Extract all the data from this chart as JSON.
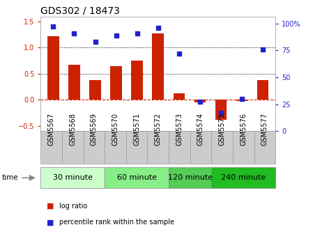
{
  "title": "GDS302 / 18473",
  "samples": [
    "GSM5567",
    "GSM5568",
    "GSM5569",
    "GSM5570",
    "GSM5571",
    "GSM5572",
    "GSM5573",
    "GSM5574",
    "GSM5575",
    "GSM5576",
    "GSM5577"
  ],
  "log_ratio": [
    1.22,
    0.67,
    0.38,
    0.65,
    0.75,
    1.27,
    0.12,
    -0.05,
    -0.38,
    -0.02,
    0.38
  ],
  "percentile_rank": [
    97,
    91,
    83,
    89,
    91,
    96,
    72,
    27,
    17,
    30,
    76
  ],
  "bar_color": "#cc2200",
  "dot_color": "#2222cc",
  "ylim_left": [
    -0.6,
    1.6
  ],
  "ylim_right": [
    0,
    106.67
  ],
  "yticks_left": [
    -0.5,
    0.0,
    0.5,
    1.0,
    1.5
  ],
  "yticks_right": [
    0,
    25,
    50,
    75,
    100
  ],
  "ytick_labels_right": [
    "0",
    "25",
    "50",
    "75",
    "100%"
  ],
  "dotted_lines": [
    0.5,
    1.0
  ],
  "zero_line_color": "#cc2200",
  "groups": [
    {
      "label": "30 minute",
      "start": 0,
      "end": 3,
      "color": "#ccffcc"
    },
    {
      "label": "60 minute",
      "start": 3,
      "end": 6,
      "color": "#88ee88"
    },
    {
      "label": "120 minute",
      "start": 6,
      "end": 8,
      "color": "#55cc55"
    },
    {
      "label": "240 minute",
      "start": 8,
      "end": 11,
      "color": "#22bb22"
    }
  ],
  "time_label": "time",
  "legend_items": [
    {
      "label": "log ratio",
      "color": "#cc2200"
    },
    {
      "label": "percentile rank within the sample",
      "color": "#2222cc"
    }
  ],
  "background_color": "#ffffff",
  "tick_label_color_left": "#cc2200",
  "tick_label_color_right": "#2222cc",
  "title_fontsize": 10,
  "axis_fontsize": 7,
  "group_fontsize": 8,
  "sample_cell_color": "#cccccc",
  "sample_cell_border": "#999999"
}
